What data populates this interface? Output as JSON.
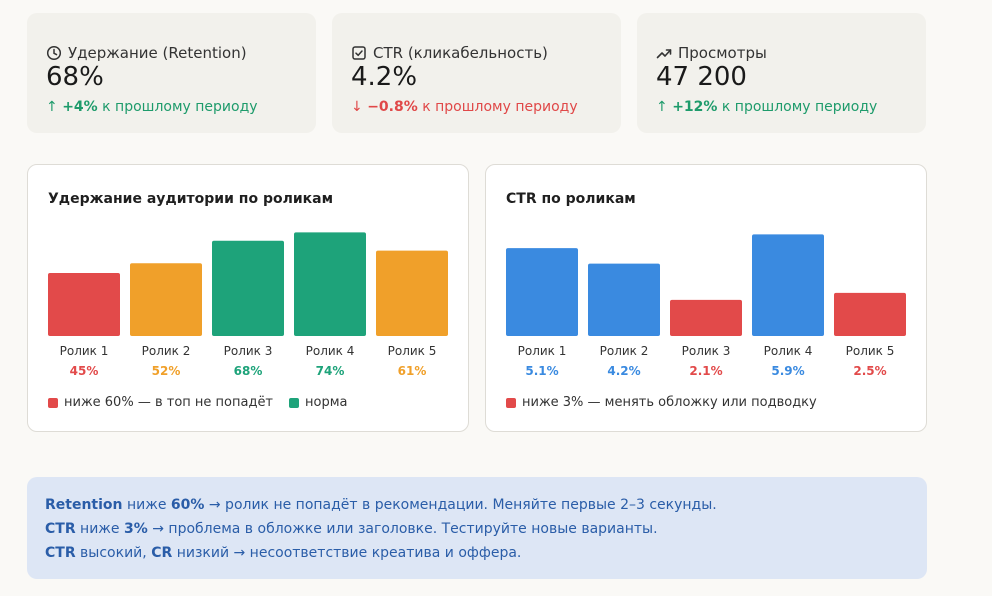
{
  "kpis": [
    {
      "icon": "clock-icon",
      "label": "Удержание (Retention)",
      "value": "68%",
      "arrow": "↑",
      "delta_value": "+4%",
      "delta_text": " к прошлому периоду",
      "trend": "up"
    },
    {
      "icon": "checkbox-icon",
      "label": "CTR (кликабельность)",
      "value": "4.2%",
      "arrow": "↓",
      "delta_value": "−0.8%",
      "delta_text": " к прошлому периоду",
      "trend": "down"
    },
    {
      "icon": "trend-up-icon",
      "label": "Просмотры",
      "value": "47 200",
      "arrow": "↑",
      "delta_value": "+12%",
      "delta_text": " к прошлому периоду",
      "trend": "up"
    }
  ],
  "colors": {
    "red": "#e24a4a",
    "orange": "#f0a02a",
    "green": "#1ea37a",
    "blue": "#3a8ae0"
  },
  "retention_card": {
    "title": "Удержание аудитории по роликам",
    "legend": [
      {
        "label": "ниже 60% — в топ не попадёт",
        "color": "#e24a4a"
      },
      {
        "label": "норма",
        "color": "#1ea37a"
      }
    ]
  },
  "ctr_card": {
    "title": "CTR по роликам",
    "legend": [
      {
        "label": "ниже 3% — менять обложку или подводку",
        "color": "#e24a4a"
      }
    ]
  },
  "chart_data": [
    {
      "type": "bar",
      "title": "Удержание аудитории по роликам",
      "categories": [
        "Ролик 1",
        "Ролик 2",
        "Ролик 3",
        "Ролик 4",
        "Ролик 5"
      ],
      "values": [
        45,
        52,
        68,
        74,
        61
      ],
      "value_labels": [
        "45%",
        "52%",
        "68%",
        "74%",
        "61%"
      ],
      "bar_colors": [
        "#e24a4a",
        "#f0a02a",
        "#1ea37a",
        "#1ea37a",
        "#f0a02a"
      ],
      "ylim": [
        0,
        80
      ]
    },
    {
      "type": "bar",
      "title": "CTR по роликам",
      "categories": [
        "Ролик 1",
        "Ролик 2",
        "Ролик 3",
        "Ролик 4",
        "Ролик 5"
      ],
      "values": [
        5.1,
        4.2,
        2.1,
        5.9,
        2.5
      ],
      "value_labels": [
        "5.1%",
        "4.2%",
        "2.1%",
        "5.9%",
        "2.5%"
      ],
      "bar_colors": [
        "#3a8ae0",
        "#3a8ae0",
        "#e24a4a",
        "#3a8ae0",
        "#e24a4a"
      ],
      "ylim": [
        0,
        6.5
      ]
    }
  ],
  "note": {
    "lines": [
      {
        "b1": "Retention",
        "t1": " ниже ",
        "b2": "60%",
        "t2": " → ролик не попадёт в рекомендации. Меняйте первые 2–3 секунды."
      },
      {
        "b1": "CTR",
        "t1": " ниже ",
        "b2": "3%",
        "t2": " → проблема в обложке или заголовке. Тестируйте новые варианты."
      },
      {
        "b1": "CTR",
        "t1": " высокий, ",
        "b2": "CR",
        "t2": " низкий → несоответствие креатива и оффера."
      }
    ]
  }
}
